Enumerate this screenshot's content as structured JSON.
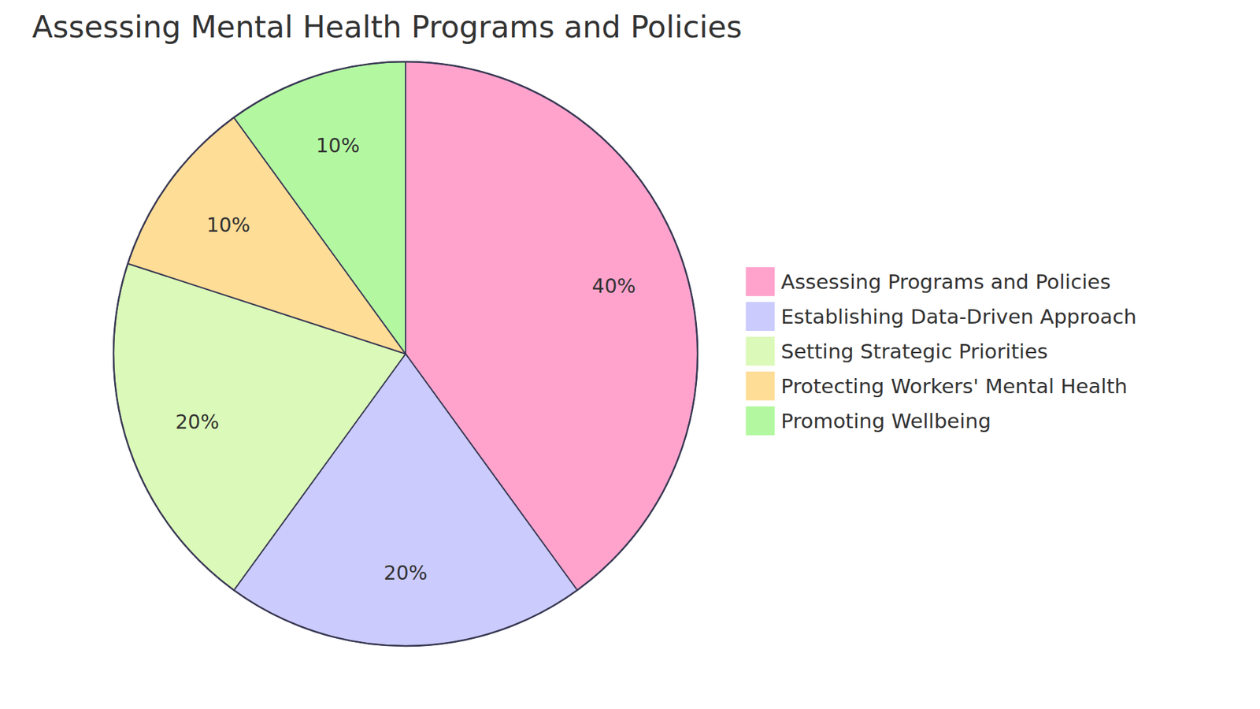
{
  "chart_data": {
    "type": "pie",
    "title": "Assessing Mental Health Programs and Policies",
    "categories": [
      "Assessing Programs and Policies",
      "Establishing Data-Driven Approach",
      "Setting Strategic Priorities",
      "Protecting Workers' Mental Health",
      "Promoting Wellbeing"
    ],
    "values": [
      40,
      20,
      20,
      10,
      10
    ],
    "value_labels": [
      "40%",
      "20%",
      "20%",
      "10%",
      "10%"
    ],
    "colors": [
      "#ffa3cd",
      "#cbcbfd",
      "#dbf9b8",
      "#fedd97",
      "#b3f8a1"
    ],
    "data_labels": true,
    "legend": "right"
  }
}
